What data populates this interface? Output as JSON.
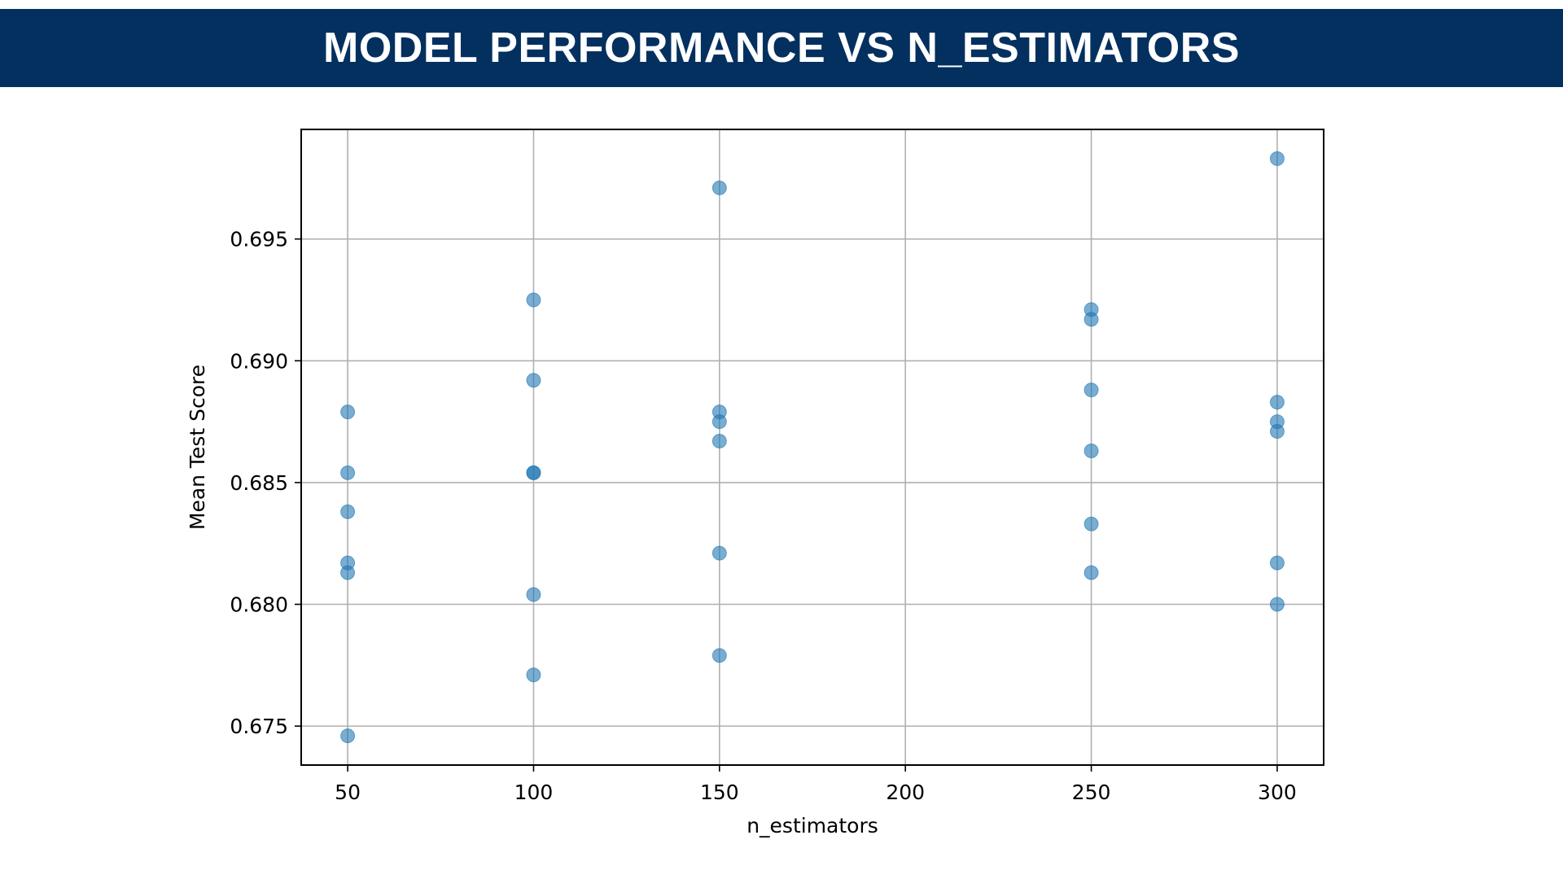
{
  "header": {
    "title": "MODEL PERFORMANCE VS N_ESTIMATORS",
    "background_color": "#03305f",
    "text_color": "#ffffff"
  },
  "chart_data": {
    "type": "scatter",
    "title": "",
    "xlabel": "n_estimators",
    "ylabel": "Mean Test Score",
    "xlim": [
      37.5,
      312.5
    ],
    "ylim": [
      0.6734,
      0.6995
    ],
    "xticks": [
      50,
      100,
      150,
      200,
      250,
      300
    ],
    "xtick_labels": [
      "50",
      "100",
      "150",
      "200",
      "250",
      "300"
    ],
    "yticks": [
      0.675,
      0.68,
      0.685,
      0.69,
      0.695
    ],
    "ytick_labels": [
      "0.675",
      "0.680",
      "0.685",
      "0.690",
      "0.695"
    ],
    "grid": true,
    "marker_color": "#1f77b4",
    "marker_alpha": 0.6,
    "points": [
      {
        "x": 50,
        "y": 0.6879
      },
      {
        "x": 50,
        "y": 0.6854
      },
      {
        "x": 50,
        "y": 0.6838
      },
      {
        "x": 50,
        "y": 0.6817
      },
      {
        "x": 50,
        "y": 0.6813
      },
      {
        "x": 50,
        "y": 0.6746
      },
      {
        "x": 100,
        "y": 0.6925
      },
      {
        "x": 100,
        "y": 0.6892
      },
      {
        "x": 100,
        "y": 0.6854
      },
      {
        "x": 100,
        "y": 0.6854
      },
      {
        "x": 100,
        "y": 0.6804
      },
      {
        "x": 100,
        "y": 0.6771
      },
      {
        "x": 150,
        "y": 0.6971
      },
      {
        "x": 150,
        "y": 0.6879
      },
      {
        "x": 150,
        "y": 0.6875
      },
      {
        "x": 150,
        "y": 0.6867
      },
      {
        "x": 150,
        "y": 0.6821
      },
      {
        "x": 150,
        "y": 0.6779
      },
      {
        "x": 250,
        "y": 0.6921
      },
      {
        "x": 250,
        "y": 0.6917
      },
      {
        "x": 250,
        "y": 0.6888
      },
      {
        "x": 250,
        "y": 0.6863
      },
      {
        "x": 250,
        "y": 0.6833
      },
      {
        "x": 250,
        "y": 0.6813
      },
      {
        "x": 300,
        "y": 0.6983
      },
      {
        "x": 300,
        "y": 0.6883
      },
      {
        "x": 300,
        "y": 0.6875
      },
      {
        "x": 300,
        "y": 0.6871
      },
      {
        "x": 300,
        "y": 0.6817
      },
      {
        "x": 300,
        "y": 0.68
      }
    ]
  }
}
